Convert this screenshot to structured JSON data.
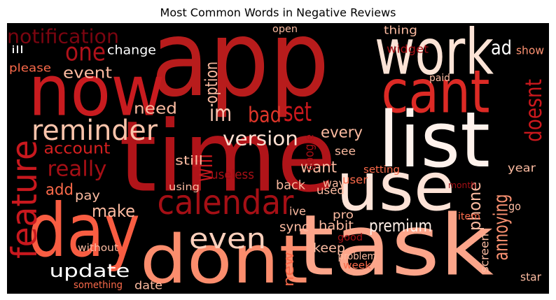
{
  "chart_data": {
    "type": "wordcloud",
    "title": "Most Common Words in Negative Reviews",
    "background": "#000000",
    "words": [
      {
        "text": "app",
        "color": "#b81c1c"
      },
      {
        "text": "now",
        "color": "#c81b1f"
      },
      {
        "text": "work",
        "color": "#fce3d6"
      },
      {
        "text": "cant",
        "color": "#dc2a25"
      },
      {
        "text": "list",
        "color": "#fff2ec"
      },
      {
        "text": "time",
        "color": "#b01419"
      },
      {
        "text": "use",
        "color": "#fde3d7"
      },
      {
        "text": "task",
        "color": "#fca58a"
      },
      {
        "text": "dont",
        "color": "#fb8d6d"
      },
      {
        "text": "day",
        "color": "#f85d42"
      },
      {
        "text": "calendar",
        "color": "#a50f15"
      },
      {
        "text": "feature",
        "color": "#c8181e"
      },
      {
        "text": "reminder",
        "color": "#fbc4ab"
      },
      {
        "text": "even",
        "color": "#fdd0bc"
      },
      {
        "text": "update",
        "color": "#ffffff"
      },
      {
        "text": "one",
        "color": "#b0121a"
      },
      {
        "text": "notification",
        "color": "#7a0510"
      },
      {
        "text": "event",
        "color": "#fcbba1"
      },
      {
        "text": "im",
        "color": "#fdcab5"
      },
      {
        "text": "bad",
        "color": "#e0362a"
      },
      {
        "text": "version",
        "color": "#fde0d2"
      },
      {
        "text": "will",
        "color": "#c8181e"
      },
      {
        "text": "really",
        "color": "#a50f15"
      },
      {
        "text": "account",
        "color": "#d42020"
      },
      {
        "text": "set",
        "color": "#cb181d"
      },
      {
        "text": "option",
        "color": "#fcbba1"
      },
      {
        "text": "need",
        "color": "#fcbba1"
      },
      {
        "text": "doesnt",
        "color": "#cb181d"
      },
      {
        "text": "annoying",
        "color": "#fc9272"
      },
      {
        "text": "premium",
        "color": "#fff0e8"
      },
      {
        "text": "phone",
        "color": "#fcbba1"
      },
      {
        "text": "ad",
        "color": "#ffffff"
      },
      {
        "text": "want",
        "color": "#fcbba1"
      },
      {
        "text": "every",
        "color": "#fcbba1"
      },
      {
        "text": "make",
        "color": "#fcbba1"
      },
      {
        "text": "add",
        "color": "#fb6a4a"
      },
      {
        "text": "thing",
        "color": "#fcbba1"
      },
      {
        "text": "widget",
        "color": "#a50f15"
      },
      {
        "text": "show",
        "color": "#fc9272"
      },
      {
        "text": "change",
        "color": "#ffffff"
      },
      {
        "text": "ill",
        "color": "#ffffff"
      },
      {
        "text": "please",
        "color": "#fb6a4a"
      },
      {
        "text": "google",
        "color": "#a50f15"
      },
      {
        "text": "useless",
        "color": "#a50f15"
      },
      {
        "text": "still",
        "color": "#fcbba1"
      },
      {
        "text": "pay",
        "color": "#fcbba1"
      },
      {
        "text": "back",
        "color": "#fcbba1"
      },
      {
        "text": "sync",
        "color": "#fcbba1"
      },
      {
        "text": "habit",
        "color": "#fcbba1"
      },
      {
        "text": "new",
        "color": "#fb6a4a"
      },
      {
        "text": "keep",
        "color": "#fcbba1"
      },
      {
        "text": "date",
        "color": "#fcbba1"
      },
      {
        "text": "pro",
        "color": "#fcbba1"
      },
      {
        "text": "ive",
        "color": "#fcbba1"
      },
      {
        "text": "used",
        "color": "#fcbba1"
      },
      {
        "text": "see",
        "color": "#fcbba1"
      },
      {
        "text": "way",
        "color": "#fcbba1"
      },
      {
        "text": "user",
        "color": "#fb6a4a"
      },
      {
        "text": "year",
        "color": "#fcbba1"
      },
      {
        "text": "month",
        "color": "#a50f15"
      },
      {
        "text": "setting",
        "color": "#fb6a4a"
      },
      {
        "text": "screen",
        "color": "#fcbba1"
      },
      {
        "text": "star",
        "color": "#fcbba1"
      },
      {
        "text": "go",
        "color": "#fcbba1"
      },
      {
        "text": "item",
        "color": "#fb6a4a"
      },
      {
        "text": "week",
        "color": "#fb6a4a"
      },
      {
        "text": "problem",
        "color": "#fcbba1"
      },
      {
        "text": "good",
        "color": "#a50f15"
      },
      {
        "text": "something",
        "color": "#fb6a4a"
      },
      {
        "text": "without",
        "color": "#fcbba1"
      },
      {
        "text": "using",
        "color": "#fcbba1"
      },
      {
        "text": "paid",
        "color": "#fcbba1"
      },
      {
        "text": "open",
        "color": "#fcbba1"
      }
    ]
  }
}
